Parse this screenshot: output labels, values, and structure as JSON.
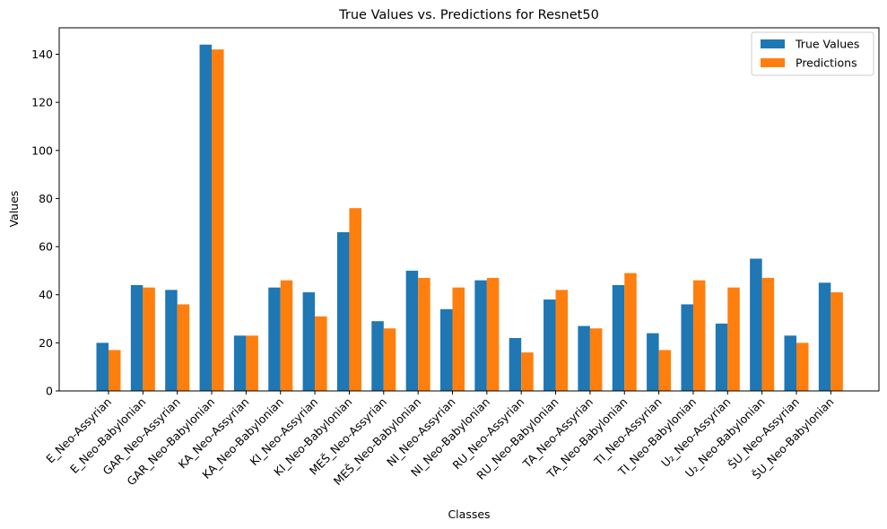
{
  "chart_data": {
    "type": "bar",
    "title": "True Values vs. Predictions for Resnet50",
    "xlabel": "Classes",
    "ylabel": "Values",
    "ylim": [
      0,
      151
    ],
    "yticks": [
      0,
      20,
      40,
      60,
      80,
      100,
      120,
      140
    ],
    "grid": false,
    "legend_position": "upper-right",
    "categories": [
      "E_Neo-Assyrian",
      "E_Neo-Babylonian",
      "GAR_Neo-Assyrian",
      "GAR_Neo-Babylonian",
      "KA_Neo-Assyrian",
      "KA_Neo-Babylonian",
      "KI_Neo-Assyrian",
      "KI_Neo-Babylonian",
      "MEŠ_Neo-Assyrian",
      "MEŠ_Neo-Babylonian",
      "NI_Neo-Assyrian",
      "NI_Neo-Babylonian",
      "RU_Neo-Assyrian",
      "RU_Neo-Babylonian",
      "TA_Neo-Assyrian",
      "TA_Neo-Babylonian",
      "TI_Neo-Assyrian",
      "TI_Neo-Babylonian",
      "U₂_Neo-Assyrian",
      "U₂_Neo-Babylonian",
      "ŠU_Neo-Assyrian",
      "ŠU_Neo-Babylonian"
    ],
    "series": [
      {
        "name": "True Values",
        "color": "#1f77b4",
        "values": [
          20,
          44,
          42,
          144,
          23,
          43,
          41,
          66,
          29,
          50,
          34,
          46,
          22,
          38,
          27,
          44,
          24,
          36,
          28,
          55,
          23,
          45
        ]
      },
      {
        "name": "Predictions",
        "color": "#ff7f0e",
        "values": [
          17,
          43,
          36,
          142,
          23,
          46,
          31,
          76,
          26,
          47,
          43,
          47,
          16,
          42,
          26,
          49,
          17,
          46,
          43,
          47,
          20,
          41
        ]
      }
    ]
  }
}
